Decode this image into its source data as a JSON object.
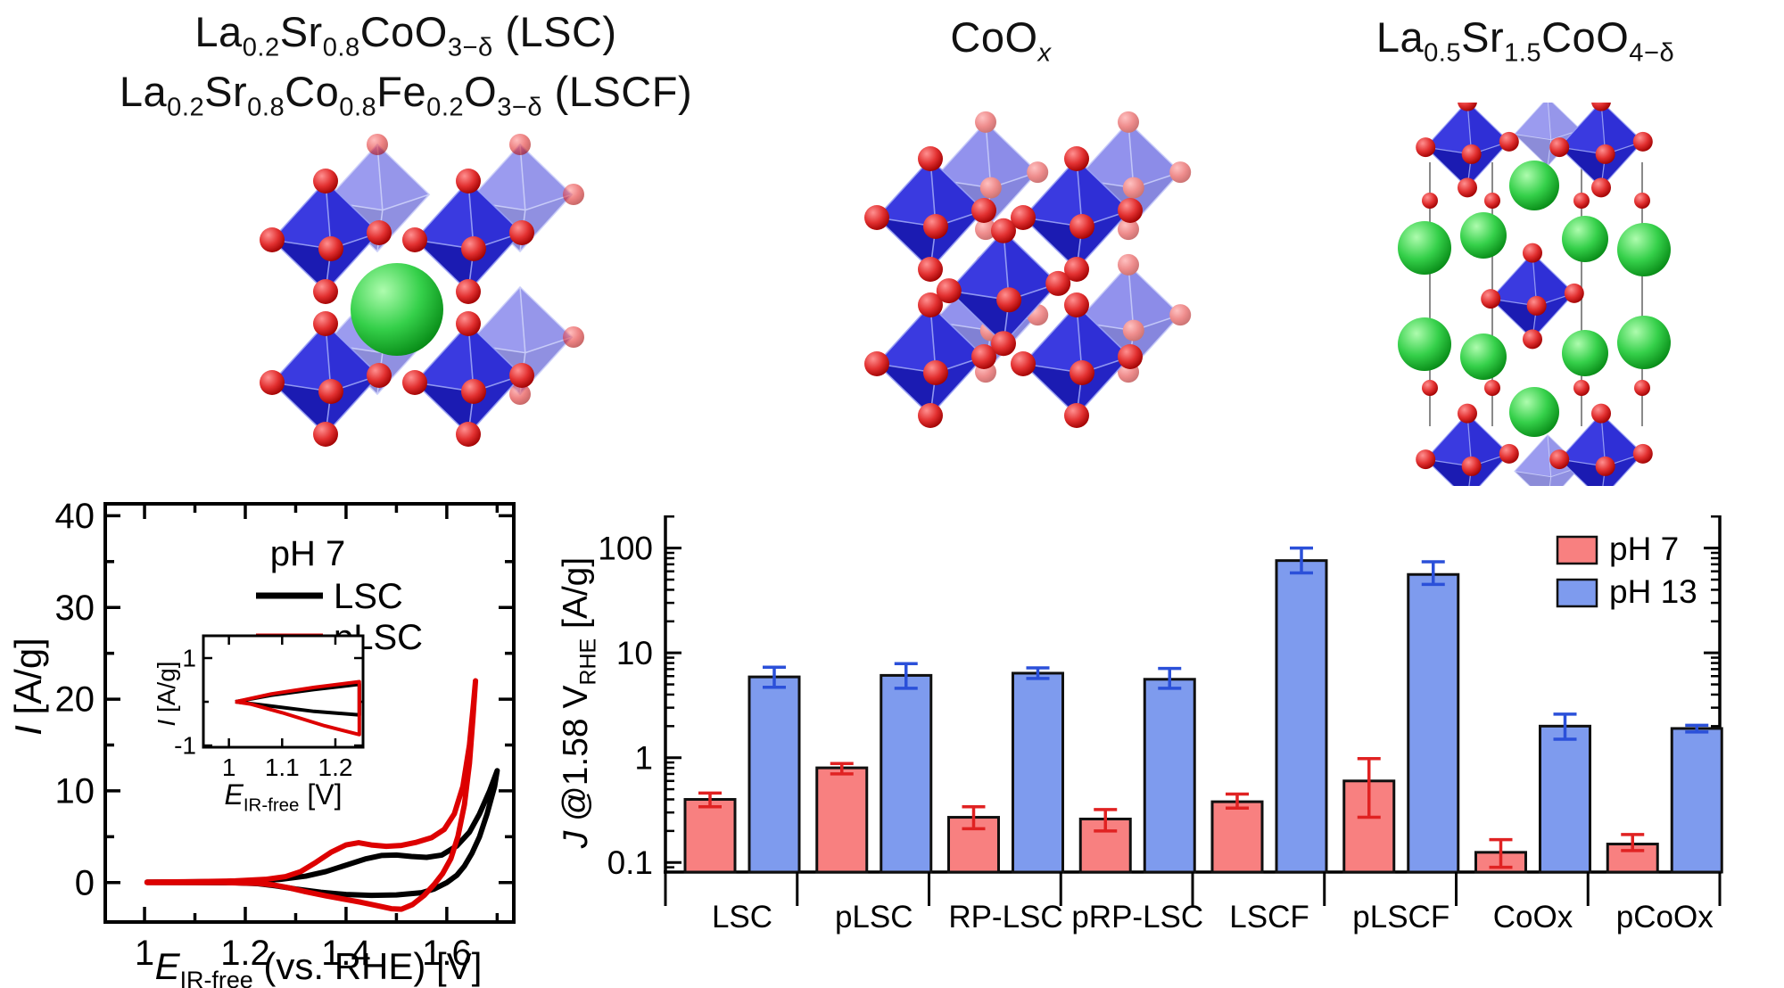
{
  "colors": {
    "bar_ph7_fill": "#f88080",
    "bar_ph13_fill": "#7e9bee",
    "bar_outline": "#101010",
    "err_ph7": "#e02222",
    "err_ph13": "#2b50d9",
    "cv_lsc": "#000000",
    "cv_plsc": "#dd0000",
    "octahedron_dark": "#1b1bb2",
    "octahedron_mid": "#2424c4",
    "octahedron_mid2": "#2f2fd6",
    "octahedron_light": "#3a3ae0",
    "octahedron_edge": "#9aa2f5",
    "oxygen_red": "#d91111",
    "asite_green": "#16b822",
    "guide_line": "#8a8a8a",
    "axis": "#000000"
  },
  "structures": {
    "lsc": {
      "label_line1": [
        [
          "La",
          ""
        ],
        [
          "0.2",
          "sub"
        ],
        [
          "Sr",
          ""
        ],
        [
          "0.8",
          "sub"
        ],
        [
          "CoO",
          ""
        ],
        [
          "3−δ",
          "sub"
        ],
        [
          " (LSC)",
          ""
        ]
      ],
      "label_line2": [
        [
          "La",
          ""
        ],
        [
          "0.2",
          "sub"
        ],
        [
          "Sr",
          ""
        ],
        [
          "0.8",
          "sub"
        ],
        [
          "Co",
          ""
        ],
        [
          "0.8",
          "sub"
        ],
        [
          "Fe",
          ""
        ],
        [
          "0.2",
          "sub"
        ],
        [
          "O",
          ""
        ],
        [
          "3−δ",
          "sub"
        ],
        [
          "  (LSCF)",
          ""
        ]
      ]
    },
    "coox": {
      "label": [
        [
          "CoO",
          ""
        ],
        [
          "x",
          "isub"
        ]
      ]
    },
    "rp": {
      "label": [
        [
          "La",
          ""
        ],
        [
          "0.5",
          "sub"
        ],
        [
          "Sr",
          ""
        ],
        [
          "1.5",
          "sub"
        ],
        [
          "CoO",
          ""
        ],
        [
          "4−δ",
          "sub"
        ]
      ]
    }
  },
  "chart_data": [
    {
      "type": "line",
      "title": "",
      "xlabel": [
        [
          "E",
          "i"
        ],
        [
          "IR-free",
          "sub"
        ],
        [
          " (vs. RHE) [V]",
          ""
        ]
      ],
      "ylabel": [
        [
          "I",
          "i"
        ],
        [
          " [A/g]",
          ""
        ]
      ],
      "xlim": [
        0.922,
        1.733
      ],
      "ylim": [
        -4.3,
        41.3
      ],
      "xticks": {
        "major": [
          {
            "v": 1,
            "label": "1"
          },
          {
            "v": 1.2,
            "label": "1.2"
          },
          {
            "v": 1.4,
            "label": "1.4"
          },
          {
            "v": 1.6,
            "label": "1.6"
          }
        ],
        "minor": [
          1.1,
          1.3,
          1.5,
          1.7
        ]
      },
      "yticks": {
        "major": [
          {
            "v": 0,
            "label": "0"
          },
          {
            "v": 10,
            "label": "10"
          },
          {
            "v": 20,
            "label": "20"
          },
          {
            "v": 30,
            "label": "30"
          },
          {
            "v": 40,
            "label": "40"
          }
        ],
        "minor": [
          5,
          15,
          25,
          35
        ]
      },
      "legend": {
        "title": "pH 7",
        "entries": [
          "LSC",
          "pLSC"
        ]
      },
      "series": [
        {
          "name": "LSC",
          "color_key": "cv_lsc",
          "points": [
            [
              1.005,
              0.05
            ],
            [
              1.08,
              0.08
            ],
            [
              1.16,
              0.12
            ],
            [
              1.22,
              0.2
            ],
            [
              1.27,
              0.35
            ],
            [
              1.32,
              0.7
            ],
            [
              1.36,
              1.2
            ],
            [
              1.4,
              1.9
            ],
            [
              1.44,
              2.6
            ],
            [
              1.47,
              2.95
            ],
            [
              1.5,
              3.0
            ],
            [
              1.53,
              2.85
            ],
            [
              1.56,
              2.75
            ],
            [
              1.59,
              3.0
            ],
            [
              1.62,
              4.0
            ],
            [
              1.645,
              5.5
            ],
            [
              1.665,
              7.5
            ],
            [
              1.685,
              10.0
            ],
            [
              1.7,
              12.2
            ],
            [
              1.695,
              10.5
            ],
            [
              1.68,
              7.5
            ],
            [
              1.665,
              5.0
            ],
            [
              1.65,
              3.2
            ],
            [
              1.635,
              1.8
            ],
            [
              1.62,
              0.8
            ],
            [
              1.6,
              0.0
            ],
            [
              1.575,
              -0.7
            ],
            [
              1.55,
              -1.1
            ],
            [
              1.5,
              -1.35
            ],
            [
              1.45,
              -1.4
            ],
            [
              1.4,
              -1.3
            ],
            [
              1.35,
              -1.05
            ],
            [
              1.3,
              -0.7
            ],
            [
              1.26,
              -0.35
            ],
            [
              1.225,
              -0.12
            ],
            [
              1.18,
              -0.02
            ],
            [
              1.1,
              0.0
            ],
            [
              1.005,
              0.02
            ]
          ]
        },
        {
          "name": "pLSC",
          "color_key": "cv_plsc",
          "points": [
            [
              1.005,
              0.05
            ],
            [
              1.1,
              0.1
            ],
            [
              1.18,
              0.18
            ],
            [
              1.24,
              0.35
            ],
            [
              1.28,
              0.65
            ],
            [
              1.31,
              1.2
            ],
            [
              1.34,
              2.2
            ],
            [
              1.37,
              3.3
            ],
            [
              1.4,
              4.1
            ],
            [
              1.425,
              4.35
            ],
            [
              1.45,
              4.1
            ],
            [
              1.48,
              3.95
            ],
            [
              1.51,
              4.05
            ],
            [
              1.54,
              4.4
            ],
            [
              1.57,
              4.9
            ],
            [
              1.595,
              5.8
            ],
            [
              1.615,
              7.5
            ],
            [
              1.632,
              10.5
            ],
            [
              1.645,
              15.0
            ],
            [
              1.653,
              19.5
            ],
            [
              1.657,
              22.0
            ],
            [
              1.652,
              18.0
            ],
            [
              1.645,
              13.0
            ],
            [
              1.635,
              8.5
            ],
            [
              1.622,
              5.0
            ],
            [
              1.608,
              2.6
            ],
            [
              1.592,
              1.0
            ],
            [
              1.575,
              -0.2
            ],
            [
              1.555,
              -1.4
            ],
            [
              1.532,
              -2.4
            ],
            [
              1.51,
              -2.9
            ],
            [
              1.49,
              -2.85
            ],
            [
              1.46,
              -2.5
            ],
            [
              1.43,
              -2.15
            ],
            [
              1.4,
              -1.85
            ],
            [
              1.36,
              -1.45
            ],
            [
              1.32,
              -1.0
            ],
            [
              1.285,
              -0.55
            ],
            [
              1.255,
              -0.25
            ],
            [
              1.225,
              -0.08
            ],
            [
              1.15,
              0.0
            ],
            [
              1.005,
              0.0
            ]
          ]
        }
      ],
      "inset": {
        "xlabel": [
          [
            "E",
            "i"
          ],
          [
            "IR-free",
            "sub"
          ],
          [
            " [V]",
            ""
          ]
        ],
        "ylabel": [
          [
            "I",
            "i"
          ],
          [
            " [A/g]",
            ""
          ]
        ],
        "xlim": [
          0.952,
          1.252
        ],
        "ylim": [
          -1.04,
          1.51
        ],
        "xticks": {
          "major": [
            {
              "v": 1,
              "label": "1"
            },
            {
              "v": 1.1,
              "label": "1.1"
            },
            {
              "v": 1.2,
              "label": "1.2"
            }
          ],
          "minor": []
        },
        "yticks": {
          "major": [
            {
              "v": 1,
              "label": "1"
            },
            {
              "v": -1,
              "label": "-1"
            }
          ],
          "minor": [
            0
          ]
        },
        "series": [
          {
            "name": "LSC",
            "color_key": "cv_lsc",
            "points": [
              [
                1.012,
                0.0
              ],
              [
                1.08,
                0.15
              ],
              [
                1.16,
                0.28
              ],
              [
                1.245,
                0.4
              ],
              [
                1.245,
                -0.3
              ],
              [
                1.16,
                -0.22
              ],
              [
                1.08,
                -0.1
              ],
              [
                1.012,
                0.0
              ]
            ]
          },
          {
            "name": "pLSC",
            "color_key": "cv_plsc",
            "points": [
              [
                1.012,
                0.0
              ],
              [
                1.08,
                0.18
              ],
              [
                1.16,
                0.33
              ],
              [
                1.245,
                0.46
              ],
              [
                1.245,
                -0.75
              ],
              [
                1.18,
                -0.55
              ],
              [
                1.1,
                -0.25
              ],
              [
                1.04,
                -0.05
              ],
              [
                1.012,
                0.0
              ]
            ]
          }
        ]
      }
    },
    {
      "type": "bar",
      "yscale": "log",
      "ylabel": [
        [
          "J",
          "i"
        ],
        [
          " @1.58 V",
          ""
        ],
        [
          "RHE",
          "sub"
        ],
        [
          " [A/g]",
          ""
        ]
      ],
      "ylim": [
        0.081,
        205
      ],
      "yticks": {
        "major": [
          {
            "v": 0.1,
            "label": "0.1"
          },
          {
            "v": 1,
            "label": "1"
          },
          {
            "v": 10,
            "label": "10"
          },
          {
            "v": 100,
            "label": "100"
          }
        ]
      },
      "categories": [
        "LSC",
        "pLSC",
        "RP-LSC",
        "pRP-LSC",
        "LSCF",
        "pLSCF",
        "CoOx",
        "pCoOx"
      ],
      "series": [
        {
          "name": "pH 7",
          "fill_key": "bar_ph7_fill",
          "err_key": "err_ph7",
          "values": [
            0.4,
            0.8,
            0.27,
            0.26,
            0.38,
            0.6,
            0.125,
            0.15
          ],
          "err_lo": [
            0.34,
            0.7,
            0.21,
            0.2,
            0.33,
            0.27,
            0.09,
            0.13
          ],
          "err_hi": [
            0.46,
            0.88,
            0.34,
            0.32,
            0.45,
            0.98,
            0.165,
            0.185
          ]
        },
        {
          "name": "pH 13",
          "fill_key": "bar_ph13_fill",
          "err_key": "err_ph13",
          "values": [
            5.9,
            6.1,
            6.4,
            5.6,
            76,
            56,
            2.0,
            1.9
          ],
          "err_lo": [
            4.7,
            4.6,
            5.7,
            4.6,
            58,
            45,
            1.5,
            1.76
          ],
          "err_hi": [
            7.3,
            7.9,
            7.2,
            7.1,
            100,
            74,
            2.6,
            2.04
          ]
        }
      ],
      "legend": {
        "entries": [
          "pH 7",
          "pH 13"
        ],
        "position": "top-right"
      }
    }
  ]
}
